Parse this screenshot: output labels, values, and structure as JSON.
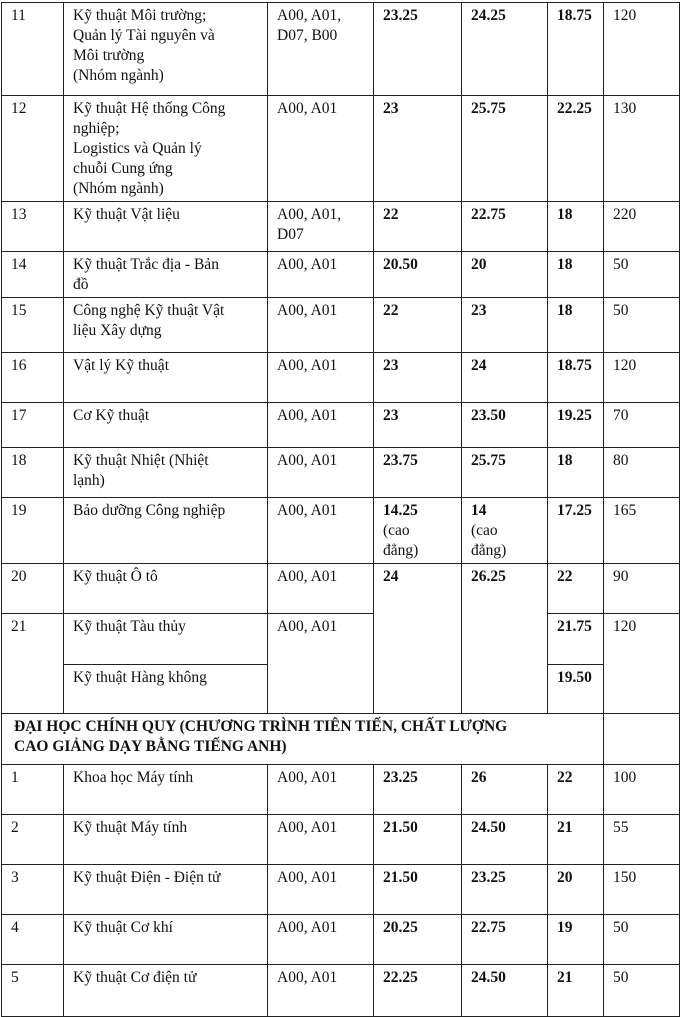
{
  "rows_a": [
    {
      "no": "11",
      "name": "Kỹ thuật Môi trường;\nQuản lý Tài nguyên và\nMôi trường\n(Nhóm ngành)",
      "groups": "A00, A01,\nD07, B00",
      "s1": "23.25",
      "s2": "24.25",
      "s3": "18.75",
      "quota": "120"
    },
    {
      "no": "12",
      "name": "Kỹ thuật Hệ thống Công\nnghiệp;\nLogistics và Quản lý\nchuỗi Cung ứng\n(Nhóm ngành)",
      "groups": "A00, A01",
      "s1": "23",
      "s2": "25.75",
      "s3": "22.25",
      "quota": "130"
    },
    {
      "no": "13",
      "name": "Kỹ thuật Vật liệu",
      "groups": "A00, A01,\nD07",
      "s1": "22",
      "s2": "22.75",
      "s3": "18",
      "quota": "220"
    },
    {
      "no": "14",
      "name": "Kỹ thuật Trắc địa - Bản\nđồ",
      "groups": "A00, A01",
      "s1": "20.50",
      "s2": "20",
      "s3": "18",
      "quota": "50"
    },
    {
      "no": "15",
      "name": "Công nghệ Kỹ thuật Vật\nliệu Xây dựng",
      "groups": "A00, A01",
      "s1": "22",
      "s2": "23",
      "s3": "18",
      "quota": "50"
    },
    {
      "no": "16",
      "name": "Vật lý Kỹ thuật",
      "groups": "A00, A01",
      "s1": "23",
      "s2": "24",
      "s3": "18.75",
      "quota": "120"
    },
    {
      "no": "17",
      "name": "Cơ Kỹ thuật",
      "groups": "A00, A01",
      "s1": "23",
      "s2": "23.50",
      "s3": "19.25",
      "quota": "70"
    },
    {
      "no": "18",
      "name": "Kỹ thuật Nhiệt (Nhiệt\nlạnh)",
      "groups": "A00, A01",
      "s1": "23.75",
      "s2": "25.75",
      "s3": "18",
      "quota": "80"
    },
    {
      "no": "19",
      "name": "Bảo dưỡng Công nghiệp",
      "groups": "A00, A01",
      "s1": "14.25",
      "s1_note": "(cao\nđẳng)",
      "s2": "14",
      "s2_note": "(cao\nđẳng)",
      "s3": "17.25",
      "quota": "165"
    }
  ],
  "merged": {
    "no20": "20",
    "name20": "Kỹ thuật Ô tô",
    "groups20": "A00, A01",
    "s1": "24",
    "s2": "26.25",
    "s3_20": "22",
    "quota20": "90",
    "no21": "21",
    "name21": "Kỹ thuật Tàu thủy",
    "groups21": "A00, A01",
    "s3_21": "21.75",
    "quota21": "120",
    "name21b": "Kỹ thuật Hàng không",
    "s3_21b": "19.50"
  },
  "section_header": "ĐẠI HỌC CHÍNH QUY (CHƯƠNG TRÌNH TIÊN TIẾN, CHẤT LƯỢNG\nCAO GIẢNG DẠY BẰNG TIẾNG ANH)",
  "rows_b": [
    {
      "no": "1",
      "name": "Khoa học Máy tính",
      "groups": "A00, A01",
      "s1": "23.25",
      "s2": "26",
      "s3": "22",
      "quota": "100"
    },
    {
      "no": "2",
      "name": "Kỹ thuật Máy tính",
      "groups": "A00, A01",
      "s1": "21.50",
      "s2": "24.50",
      "s3": "21",
      "quota": "55"
    },
    {
      "no": "3",
      "name": "Kỹ thuật Điện - Điện tử",
      "groups": "A00, A01",
      "s1": "21.50",
      "s2": "23.25",
      "s3": "20",
      "quota": "150"
    },
    {
      "no": "4",
      "name": "Kỹ thuật Cơ khí",
      "groups": "A00, A01",
      "s1": "20.25",
      "s2": "22.75",
      "s3": "19",
      "quota": "50"
    },
    {
      "no": "5",
      "name": "Kỹ thuật Cơ điện tử",
      "groups": "A00, A01",
      "s1": "22.25",
      "s2": "24.50",
      "s3": "21",
      "quota": "50"
    }
  ]
}
